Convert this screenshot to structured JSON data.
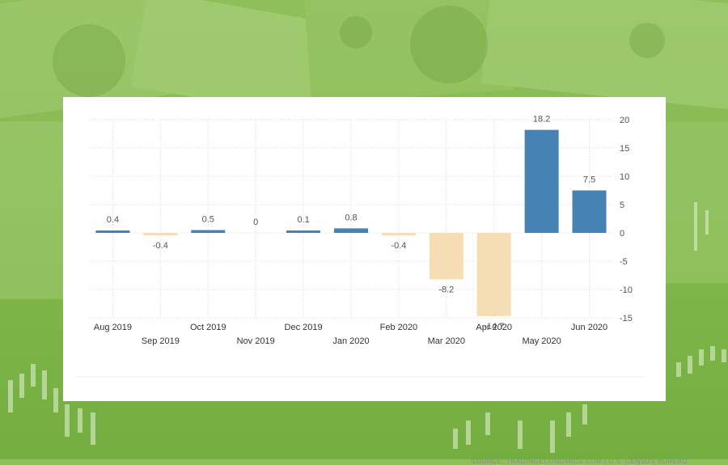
{
  "chart_data": {
    "type": "bar",
    "categories": [
      "Aug 2019",
      "Sep 2019",
      "Oct 2019",
      "Nov 2019",
      "Dec 2019",
      "Jan 2020",
      "Feb 2020",
      "Mar 2020",
      "Apr 2020",
      "May 2020",
      "Jun 2020"
    ],
    "values": [
      0.4,
      -0.4,
      0.5,
      0,
      0.1,
      0.8,
      -0.4,
      -8.2,
      -14.7,
      18.2,
      7.5
    ],
    "value_labels": [
      "0.4",
      "-0.4",
      "0.5",
      "0",
      "0.1",
      "0.8",
      "-0.4",
      "-8.2",
      "-14.7",
      "18.2",
      "7.5"
    ],
    "ylim": [
      -15,
      20
    ],
    "yticks": [
      20,
      15,
      10,
      5,
      0,
      -5,
      -10,
      -15
    ],
    "y_axis_side": "right",
    "grid": true,
    "colors": {
      "positive": "#4682b4",
      "negative": "#f5deb3"
    },
    "source": "SOURCE: TRADINGECONOMICS.COM  |  U.S. CENSUS BUREAU"
  },
  "colors": {
    "text": "#555555",
    "grid": "#d8d8d8",
    "background_green": "#86bb52"
  }
}
